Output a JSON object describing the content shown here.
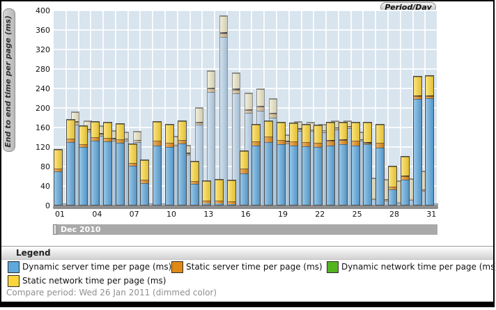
{
  "header": {
    "period_label": "Period/Day"
  },
  "y_axis": {
    "label": "End to end time per page (ms)",
    "min": 0,
    "max": 400,
    "step": 40
  },
  "x_axis": {
    "month_label": "Dec 2010",
    "tick_labels": [
      "01",
      "04",
      "07",
      "10",
      "13",
      "16",
      "19",
      "22",
      "25",
      "28",
      "31"
    ]
  },
  "legend": {
    "title": "Legend",
    "items": [
      {
        "label": "Dynamic server time per page (ms)",
        "color_key": "dynamic_server"
      },
      {
        "label": "Static server time per page (ms)",
        "color_key": "static_server"
      },
      {
        "label": "Dynamic network time per page (ms)",
        "color_key": "dynamic_network"
      },
      {
        "label": "Static network time per page (ms)",
        "color_key": "static_network"
      }
    ],
    "compare_note": "Compare period: Wed 26 Jan 2011 (dimmed color)"
  },
  "colors": {
    "bright": {
      "dynamic_server": "#5fa8dc",
      "static_server": "#e08a15",
      "dynamic_network": "#52b41f",
      "static_network": "#fbd53a"
    },
    "bright_network_line": "#1f1f1f",
    "dimmed": {
      "dynamic_server": "#b7d2e8",
      "static_server": "#d5bc92",
      "dynamic_network": "#4a4a4a",
      "static_network": "#e9e5c6"
    },
    "plot_background": "#d8e4ee",
    "legend_green": "#52b41f"
  },
  "chart_data": {
    "type": "bar",
    "stacked": true,
    "unit": "ms",
    "ylim": [
      0,
      400
    ],
    "ylabel": "End to end time per page (ms)",
    "xlabel": "Period/Day",
    "grid": true,
    "segment_order": [
      "dynamic_server",
      "static_server",
      "dynamic_network",
      "static_network"
    ],
    "series_note": "main = Dec 2010 value per day; compare = dimmed bar (Wed 26 Jan 2011 compare period)",
    "days": [
      {
        "day": "01",
        "main": [
          68,
          7,
          0,
          38
        ],
        "compare": [
          1,
          0,
          0,
          1
        ]
      },
      {
        "day": "02",
        "main": [
          129,
          7,
          0,
          39
        ],
        "compare": [
          165,
          5,
          2,
          18
        ]
      },
      {
        "day": "03",
        "main": [
          118,
          7,
          0,
          37
        ],
        "compare": [
          150,
          4,
          2,
          15
        ]
      },
      {
        "day": "04",
        "main": [
          131,
          8,
          0,
          31
        ],
        "compare": [
          142,
          3,
          2,
          15
        ]
      },
      {
        "day": "05",
        "main": [
          130,
          7,
          0,
          32
        ],
        "compare": [
          132,
          3,
          2,
          15
        ]
      },
      {
        "day": "06",
        "main": [
          127,
          7,
          0,
          32
        ],
        "compare": [
          131,
          3,
          2,
          13
        ]
      },
      {
        "day": "07",
        "main": [
          80,
          6,
          0,
          38
        ],
        "compare": [
          128,
          3,
          2,
          17
        ]
      },
      {
        "day": "08",
        "main": [
          45,
          7,
          0,
          40
        ],
        "compare": [
          1,
          0,
          0,
          1
        ]
      },
      {
        "day": "09",
        "main": [
          122,
          9,
          0,
          39
        ],
        "compare": [
          1,
          0,
          0,
          1
        ]
      },
      {
        "day": "10",
        "main": [
          119,
          8,
          0,
          37
        ],
        "compare": [
          122,
          3,
          0,
          15
        ]
      },
      {
        "day": "11",
        "main": [
          126,
          7,
          0,
          38
        ],
        "compare": [
          103,
          2,
          2,
          14
        ]
      },
      {
        "day": "12",
        "main": [
          43,
          5,
          0,
          40
        ],
        "compare": [
          164,
          4,
          2,
          28
        ]
      },
      {
        "day": "13",
        "main": [
          3,
          5,
          0,
          40
        ],
        "compare": [
          232,
          6,
          2,
          35
        ]
      },
      {
        "day": "14",
        "main": [
          3,
          5,
          0,
          44
        ],
        "compare": [
          345,
          7,
          3,
          32
        ]
      },
      {
        "day": "15",
        "main": [
          2,
          5,
          0,
          43
        ],
        "compare": [
          228,
          8,
          3,
          31
        ]
      },
      {
        "day": "16",
        "main": [
          64,
          10,
          0,
          36
        ],
        "compare": [
          188,
          6,
          2,
          33
        ]
      },
      {
        "day": "17",
        "main": [
          121,
          9,
          0,
          35
        ],
        "compare": [
          193,
          8,
          2,
          34
        ]
      },
      {
        "day": "18",
        "main": [
          129,
          11,
          0,
          31
        ],
        "compare": [
          179,
          8,
          2,
          28
        ]
      },
      {
        "day": "19",
        "main": [
          125,
          8,
          0,
          35
        ],
        "compare": [
          126,
          3,
          2,
          12
        ]
      },
      {
        "day": "20",
        "main": [
          122,
          8,
          0,
          37
        ],
        "compare": [
          152,
          3,
          2,
          13
        ]
      },
      {
        "day": "21",
        "main": [
          120,
          8,
          0,
          36
        ],
        "compare": [
          151,
          4,
          0,
          13
        ]
      },
      {
        "day": "22",
        "main": [
          119,
          8,
          0,
          36
        ],
        "compare": [
          149,
          4,
          0,
          12
        ]
      },
      {
        "day": "23",
        "main": [
          122,
          9,
          2,
          35
        ],
        "compare": [
          154,
          3,
          2,
          13
        ]
      },
      {
        "day": "24",
        "main": [
          124,
          9,
          2,
          34
        ],
        "compare": [
          157,
          3,
          2,
          9
        ]
      },
      {
        "day": "25",
        "main": [
          121,
          11,
          0,
          37
        ],
        "compare": [
          131,
          2,
          2,
          13
        ]
      },
      {
        "day": "26",
        "main": [
          124,
          2,
          2,
          40
        ],
        "compare": [
          12,
          2,
          0,
          41
        ]
      },
      {
        "day": "27",
        "main": [
          117,
          10,
          0,
          38
        ],
        "compare": [
          8,
          2,
          1,
          40
        ]
      },
      {
        "day": "28",
        "main": [
          31,
          6,
          0,
          42
        ],
        "compare": [
          4,
          2,
          0,
          42
        ]
      },
      {
        "day": "29",
        "main": [
          52,
          6,
          2,
          38
        ],
        "compare": [
          10,
          3,
          0,
          40
        ]
      },
      {
        "day": "30",
        "main": [
          217,
          6,
          2,
          38
        ],
        "compare": [
          28,
          2,
          2,
          37
        ]
      },
      {
        "day": "31",
        "main": [
          218,
          5,
          2,
          39
        ],
        "compare": [
          1,
          0,
          0,
          1
        ]
      }
    ]
  }
}
